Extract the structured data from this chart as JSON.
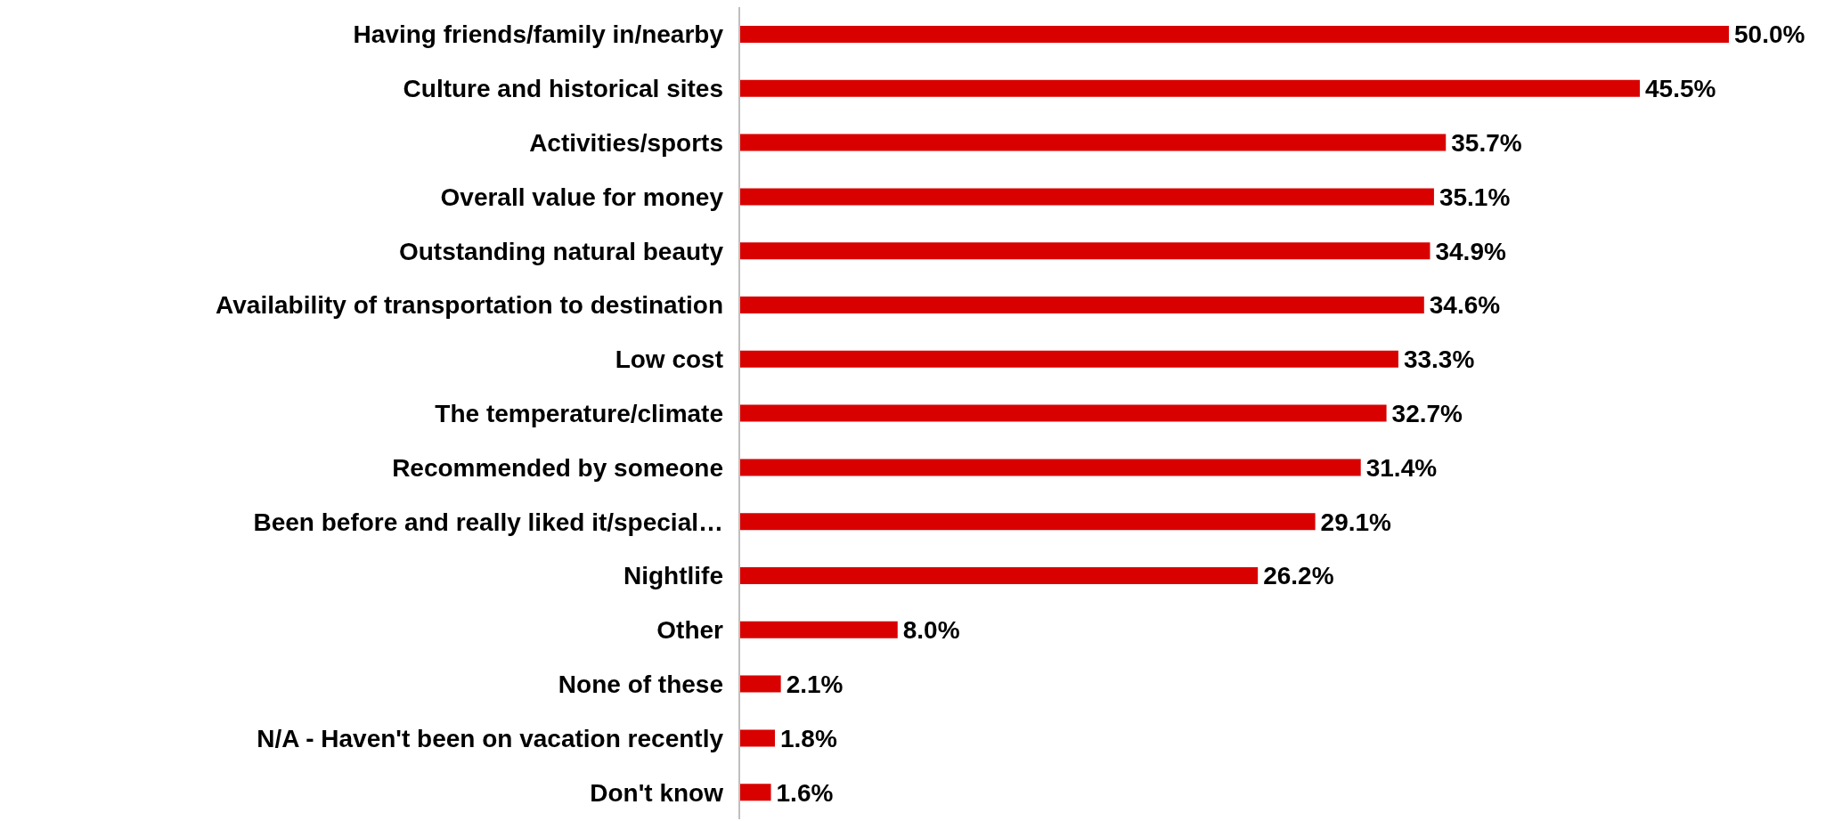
{
  "chart_data": {
    "type": "bar",
    "orientation": "horizontal",
    "color": "#d90000",
    "categories": [
      "Having friends/family in/nearby",
      "Culture and historical sites",
      "Activities/sports",
      "Overall value for money",
      "Outstanding natural beauty",
      "Availability of transportation to destination",
      "Low cost",
      "The temperature/climate",
      "Recommended by someone",
      "Been before and really liked it/special…",
      "Nightlife",
      "Other",
      "None of these",
      "N/A - Haven't been on vacation recently",
      "Don't know"
    ],
    "values": [
      50.0,
      45.5,
      35.7,
      35.1,
      34.9,
      34.6,
      33.3,
      32.7,
      31.4,
      29.1,
      26.2,
      8.0,
      2.1,
      1.8,
      1.6
    ],
    "value_labels": [
      "50.0%",
      "45.5%",
      "35.7%",
      "35.1%",
      "34.9%",
      "34.6%",
      "33.3%",
      "32.7%",
      "31.4%",
      "29.1%",
      "26.2%",
      "8.0%",
      "2.1%",
      "1.8%",
      "1.6%"
    ]
  }
}
